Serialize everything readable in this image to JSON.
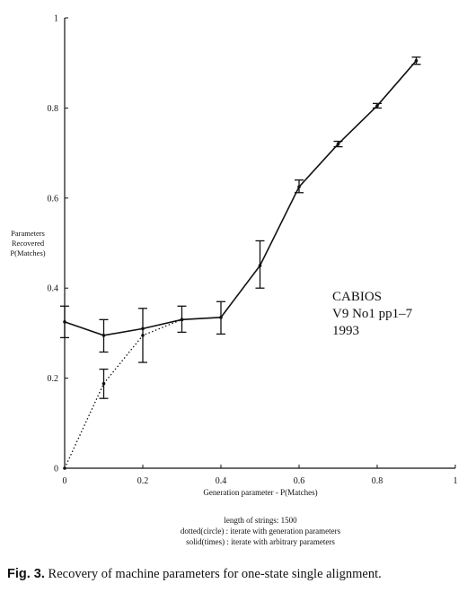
{
  "chart_data": {
    "type": "line",
    "title": "",
    "xlabel": "Generation parameter - P(Matches)",
    "ylabel_lines": [
      "Parameters",
      "Recovered",
      "P(Matches)"
    ],
    "xlim": [
      0,
      1
    ],
    "ylim": [
      0,
      1
    ],
    "x_ticks": [
      0,
      0.2,
      0.4,
      0.6,
      0.8,
      1
    ],
    "x_tick_labels": [
      "0",
      "0.2",
      "0.4",
      "0.6",
      "0.8",
      "1"
    ],
    "y_ticks": [
      0,
      0.2,
      0.4,
      0.6,
      0.8,
      1
    ],
    "y_tick_labels": [
      "0",
      "0.2",
      "0.4",
      "0.6",
      "0.8",
      "1"
    ],
    "grid": false,
    "series": [
      {
        "style": "solid",
        "points": [
          {
            "x": 0.0,
            "y": 0.325,
            "err_low": 0.29,
            "err_high": 0.36
          },
          {
            "x": 0.1,
            "y": 0.295,
            "err_low": null,
            "err_high": null
          },
          {
            "x": 0.2,
            "y": 0.31,
            "err_low": null,
            "err_high": null
          },
          {
            "x": 0.3,
            "y": 0.33,
            "err_low": 0.302,
            "err_high": 0.36
          },
          {
            "x": 0.4,
            "y": 0.335,
            "err_low": 0.298,
            "err_high": 0.37
          },
          {
            "x": 0.5,
            "y": 0.45,
            "err_low": 0.4,
            "err_high": 0.505
          },
          {
            "x": 0.6,
            "y": 0.625,
            "err_low": 0.612,
            "err_high": 0.64
          },
          {
            "x": 0.7,
            "y": 0.72,
            "err_low": 0.714,
            "err_high": 0.726
          },
          {
            "x": 0.8,
            "y": 0.805,
            "err_low": 0.8,
            "err_high": 0.81
          },
          {
            "x": 0.9,
            "y": 0.905,
            "err_low": 0.897,
            "err_high": 0.913
          }
        ]
      },
      {
        "style": "dotted",
        "points": [
          {
            "x": 0.0,
            "y": 0.0,
            "err_low": null,
            "err_high": null
          },
          {
            "x": 0.1,
            "y": 0.188,
            "err_low": 0.155,
            "err_high": 0.22
          },
          {
            "x": 0.2,
            "y": 0.295,
            "err_low": 0.235,
            "err_high": 0.355
          },
          {
            "x": 0.3,
            "y": 0.33,
            "err_low": null,
            "err_high": null
          },
          {
            "x": 0.1,
            "y": 0.295,
            "err_low": 0.258,
            "err_high": 0.33,
            "mark": "solid-errbar"
          }
        ]
      }
    ],
    "annotation_lines": [
      "CABIOS",
      "V9 No1 pp1–7",
      "1993"
    ],
    "notes": [
      "length of strings: 1500",
      "dotted(circle) : iterate with generation parameters",
      "solid(times) : iterate with arbitrary parameters"
    ]
  },
  "caption": {
    "label": "Fig. 3.",
    "text": "Recovery of machine parameters for one-state single alignment."
  }
}
